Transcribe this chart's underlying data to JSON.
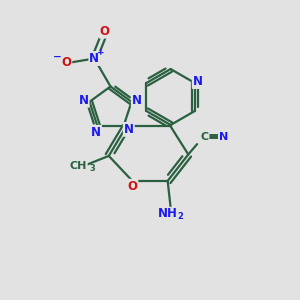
{
  "bg_color": "#e2e2e2",
  "bond_color": "#2a6040",
  "bond_width": 1.6,
  "atom_colors": {
    "N": "#1a1aee",
    "O": "#cc1111",
    "C": "#2a6040"
  },
  "font_size": 8.5,
  "font_size_sub": 6.0
}
